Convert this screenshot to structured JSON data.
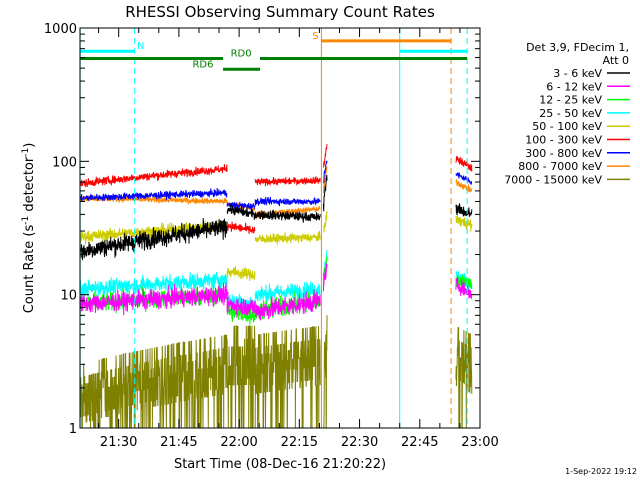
{
  "chart_data": {
    "type": "line",
    "title": "RHESSI Observing Summary Count Rates",
    "xlabel": "Start Time (08-Dec-16 21:20:22)",
    "ylabel_main": "Count Rate (s",
    "ylabel_sup1": "-1",
    "ylabel_mid": " detector",
    "ylabel_sup2": "-1",
    "ylabel_end": ")",
    "yscale": "log",
    "ylim": [
      1,
      1000
    ],
    "xlim_minutes": [
      20.37,
      180
    ],
    "x_ticks": [
      {
        "min": 30,
        "label": "21:30"
      },
      {
        "min": 45,
        "label": "21:45"
      },
      {
        "min": 60,
        "label": "22:00"
      },
      {
        "min": 75,
        "label": "22:15"
      },
      {
        "min": 90,
        "label": "22:30"
      },
      {
        "min": 105,
        "label": "22:45"
      },
      {
        "min": 120,
        "label": "23:00"
      }
    ],
    "y_ticks": [
      {
        "val": 1,
        "label": "1"
      },
      {
        "val": 10,
        "label": "10"
      },
      {
        "val": 100,
        "label": "100"
      },
      {
        "val": 1000,
        "label": "1000"
      }
    ],
    "legend_header": [
      "Det 3,9, FDecim 1,",
      "Att 0"
    ],
    "series": [
      {
        "name": "3 - 6 keV",
        "color": "#000000",
        "segments": [
          {
            "x0": 20.4,
            "x1": 57.0,
            "y0": 21,
            "y1": 32,
            "noise": 0.08
          },
          {
            "x0": 57.0,
            "x1": 64.0,
            "y0": 44,
            "y1": 40,
            "noise": 0.04
          },
          {
            "x0": 64.0,
            "x1": 80.2,
            "y0": 40,
            "y1": 38,
            "noise": 0.04
          },
          {
            "x0": 81.0,
            "x1": 81.9,
            "y0": 45,
            "y1": 80,
            "noise": 0.05
          },
          {
            "x0": 114.0,
            "x1": 118.0,
            "y0": 44,
            "y1": 40,
            "noise": 0.05
          }
        ]
      },
      {
        "name": "6 - 12 keV",
        "color": "#ff00ff",
        "segments": [
          {
            "x0": 20.4,
            "x1": 57.0,
            "y0": 8.5,
            "y1": 10,
            "noise": 0.08
          },
          {
            "x0": 57.0,
            "x1": 64.0,
            "y0": 8.5,
            "y1": 8,
            "noise": 0.08
          },
          {
            "x0": 64.0,
            "x1": 80.2,
            "y0": 7.5,
            "y1": 9,
            "noise": 0.09
          },
          {
            "x0": 81.0,
            "x1": 81.9,
            "y0": 12,
            "y1": 16,
            "noise": 0.06
          },
          {
            "x0": 114.0,
            "x1": 118.0,
            "y0": 12,
            "y1": 10,
            "noise": 0.06
          }
        ]
      },
      {
        "name": "12 - 25 keV",
        "color": "#00ff00",
        "segments": [
          {
            "x0": 20.4,
            "x1": 57.0,
            "y0": 8.5,
            "y1": 10,
            "noise": 0.08
          },
          {
            "x0": 57.0,
            "x1": 64.0,
            "y0": 7.5,
            "y1": 7,
            "noise": 0.08
          },
          {
            "x0": 64.0,
            "x1": 80.2,
            "y0": 7.5,
            "y1": 9,
            "noise": 0.09
          },
          {
            "x0": 81.0,
            "x1": 81.9,
            "y0": 13,
            "y1": 18,
            "noise": 0.06
          },
          {
            "x0": 114.0,
            "x1": 118.0,
            "y0": 13,
            "y1": 12,
            "noise": 0.06
          }
        ]
      },
      {
        "name": "25 - 50 keV",
        "color": "#00ffff",
        "segments": [
          {
            "x0": 20.4,
            "x1": 57.0,
            "y0": 11,
            "y1": 13,
            "noise": 0.07
          },
          {
            "x0": 57.0,
            "x1": 64.0,
            "y0": 9,
            "y1": 8.5,
            "noise": 0.07
          },
          {
            "x0": 64.0,
            "x1": 80.2,
            "y0": 10,
            "y1": 11,
            "noise": 0.07
          },
          {
            "x0": 81.0,
            "x1": 81.9,
            "y0": 14,
            "y1": 20,
            "noise": 0.06
          },
          {
            "x0": 114.0,
            "x1": 118.0,
            "y0": 14,
            "y1": 12,
            "noise": 0.06
          }
        ]
      },
      {
        "name": "50 - 100 keV",
        "color": "#cccc00",
        "segments": [
          {
            "x0": 20.4,
            "x1": 57.0,
            "y0": 27,
            "y1": 33,
            "noise": 0.05
          },
          {
            "x0": 57.0,
            "x1": 64.0,
            "y0": 15,
            "y1": 14,
            "noise": 0.05
          },
          {
            "x0": 64.0,
            "x1": 80.2,
            "y0": 26,
            "y1": 27,
            "noise": 0.04
          },
          {
            "x0": 81.0,
            "x1": 81.9,
            "y0": 30,
            "y1": 40,
            "noise": 0.05
          },
          {
            "x0": 114.0,
            "x1": 118.0,
            "y0": 37,
            "y1": 33,
            "noise": 0.05
          }
        ]
      },
      {
        "name": "100 - 300 keV",
        "color": "#ff0000",
        "segments": [
          {
            "x0": 20.4,
            "x1": 57.0,
            "y0": 68,
            "y1": 88,
            "noise": 0.035
          },
          {
            "x0": 57.0,
            "x1": 64.0,
            "y0": 33,
            "y1": 30,
            "noise": 0.04
          },
          {
            "x0": 64.0,
            "x1": 80.2,
            "y0": 70,
            "y1": 72,
            "noise": 0.03
          },
          {
            "x0": 81.0,
            "x1": 81.9,
            "y0": 90,
            "y1": 130,
            "noise": 0.04
          },
          {
            "x0": 114.0,
            "x1": 118.0,
            "y0": 105,
            "y1": 88,
            "noise": 0.035
          }
        ]
      },
      {
        "name": "300 - 800 keV",
        "color": "#0000ff",
        "segments": [
          {
            "x0": 20.4,
            "x1": 57.0,
            "y0": 53,
            "y1": 58,
            "noise": 0.03
          },
          {
            "x0": 57.0,
            "x1": 64.0,
            "y0": 47,
            "y1": 46,
            "noise": 0.03
          },
          {
            "x0": 64.0,
            "x1": 80.2,
            "y0": 50,
            "y1": 50,
            "noise": 0.03
          },
          {
            "x0": 81.0,
            "x1": 81.9,
            "y0": 70,
            "y1": 105,
            "noise": 0.04
          },
          {
            "x0": 114.0,
            "x1": 118.0,
            "y0": 80,
            "y1": 70,
            "noise": 0.03
          }
        ]
      },
      {
        "name": "800 - 7000 keV",
        "color": "#ff8800",
        "segments": [
          {
            "x0": 20.4,
            "x1": 57.0,
            "y0": 53,
            "y1": 50,
            "noise": 0.025
          },
          {
            "x0": 57.0,
            "x1": 64.0,
            "y0": 48,
            "y1": 44,
            "noise": 0.025
          },
          {
            "x0": 64.0,
            "x1": 80.2,
            "y0": 40,
            "y1": 44,
            "noise": 0.025
          },
          {
            "x0": 81.0,
            "x1": 81.9,
            "y0": 60,
            "y1": 90,
            "noise": 0.04
          },
          {
            "x0": 114.0,
            "x1": 118.0,
            "y0": 70,
            "y1": 60,
            "noise": 0.03
          }
        ]
      },
      {
        "name": "7000 - 15000 keV",
        "color": "#808000",
        "segments": [
          {
            "x0": 20.4,
            "x1": 57.0,
            "y0": 1.8,
            "y1": 3,
            "noise": 0.35
          },
          {
            "x0": 57.0,
            "x1": 64.0,
            "y0": 3.5,
            "y1": 3.5,
            "noise": 0.25
          },
          {
            "x0": 64.0,
            "x1": 80.2,
            "y0": 3,
            "y1": 3.5,
            "noise": 0.3
          },
          {
            "x0": 81.0,
            "x1": 81.9,
            "y0": 1,
            "y1": 6,
            "noise": 0.2
          },
          {
            "x0": 114.0,
            "x1": 118.0,
            "y0": 3.5,
            "y1": 3,
            "noise": 0.25
          }
        ]
      }
    ],
    "vlines": [
      {
        "min": 20.4,
        "color": "#00ffff",
        "dash": false
      },
      {
        "min": 34.0,
        "color": "#00ffff",
        "dash": true
      },
      {
        "min": 80.5,
        "color": "#ff8800",
        "dash": false
      },
      {
        "min": 100.0,
        "color": "#00ffff",
        "dash": false
      },
      {
        "min": 112.8,
        "color": "#ff8800",
        "dash": true
      },
      {
        "min": 116.8,
        "color": "#00ffff",
        "dash": true
      }
    ],
    "bars": [
      {
        "label": "N",
        "color": "#00ffff",
        "y": 670,
        "ranges": [
          [
            20.4,
            34.0
          ],
          [
            100.0,
            116.8
          ]
        ],
        "label_at": 35.5
      },
      {
        "label": "S",
        "color": "#ff8800",
        "y": 800,
        "ranges": [
          [
            80.5,
            112.8
          ]
        ],
        "label_at": 79.0
      },
      {
        "label": "RD0",
        "color": "#008000",
        "y": 590,
        "ranges": [
          [
            20.4,
            56.0
          ],
          [
            65.2,
            116.8
          ]
        ],
        "label_at": 60.5
      },
      {
        "label": "RD6",
        "color": "#008000",
        "y": 490,
        "ranges": [
          [
            56.0,
            65.2
          ]
        ],
        "label_at": 51.0
      }
    ]
  },
  "footer_date": "1-Sep-2022 19:12"
}
